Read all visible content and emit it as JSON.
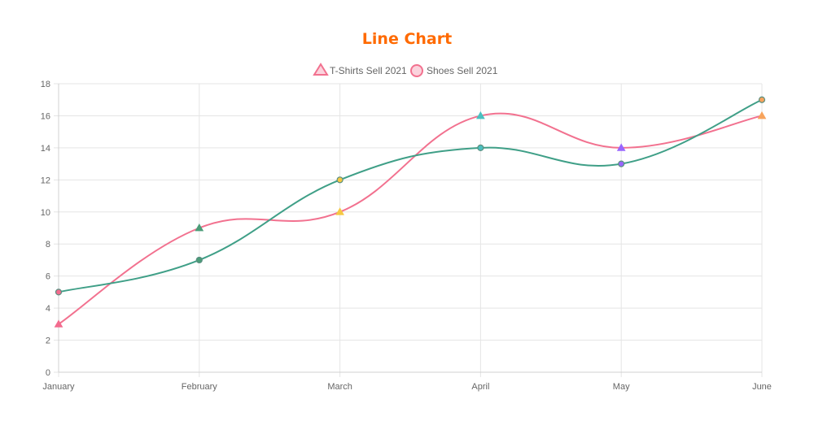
{
  "colors": {
    "title": "#ff6a00",
    "grid": "#e5e5e5",
    "axis_text": "#666666",
    "tshirts_line": "#f2718f",
    "shoes_line": "#3f9f87"
  },
  "chart_data": {
    "type": "line",
    "title": "Line Chart",
    "categories": [
      "January",
      "February",
      "March",
      "April",
      "May",
      "June"
    ],
    "ylim": [
      0,
      18
    ],
    "yticks": [
      0,
      2,
      4,
      6,
      8,
      10,
      12,
      14,
      16,
      18
    ],
    "grid": true,
    "legend": "top-center",
    "series": [
      {
        "name": "T-Shirts Sell 2021",
        "marker": "triangle",
        "values": [
          3,
          9,
          10,
          16,
          14,
          16
        ],
        "point_colors": [
          "#f36b8e",
          "#4b9c78",
          "#f5c842",
          "#4bc0c0",
          "#9966ff",
          "#f7a35c"
        ]
      },
      {
        "name": "Shoes Sell 2021",
        "marker": "circle",
        "values": [
          5,
          7,
          12,
          14,
          13,
          17
        ],
        "point_colors": [
          "#f36b8e",
          "#4b9c78",
          "#f5c842",
          "#4bc0c0",
          "#9966ff",
          "#f7a35c"
        ]
      }
    ]
  }
}
